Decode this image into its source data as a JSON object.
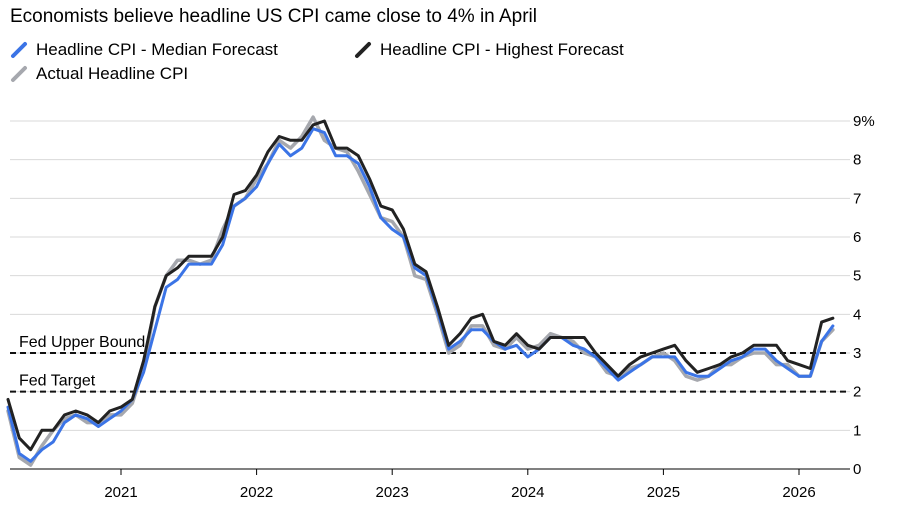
{
  "chart_data": {
    "type": "line",
    "title": "Economists believe headline US CPI came close to 4% in April",
    "y_unit": "%",
    "ylim": [
      0,
      9
    ],
    "y_ticks": [
      "0",
      "1",
      "2",
      "3",
      "4",
      "5",
      "6",
      "7",
      "8",
      "9%"
    ],
    "x_ticks": [
      "2021",
      "2022",
      "2023",
      "2024",
      "2025",
      "2026"
    ],
    "grid": "horizontal",
    "legend_position": "top-left",
    "reference_lines": [
      {
        "label": "Fed Upper Bound",
        "value": 3
      },
      {
        "label": "Fed Target",
        "value": 2
      }
    ],
    "x": [
      "2020-03",
      "2020-04",
      "2020-05",
      "2020-06",
      "2020-07",
      "2020-08",
      "2020-09",
      "2020-10",
      "2020-11",
      "2020-12",
      "2021-01",
      "2021-02",
      "2021-03",
      "2021-04",
      "2021-05",
      "2021-06",
      "2021-07",
      "2021-08",
      "2021-09",
      "2021-10",
      "2021-11",
      "2021-12",
      "2022-01",
      "2022-02",
      "2022-03",
      "2022-04",
      "2022-05",
      "2022-06",
      "2022-07",
      "2022-08",
      "2022-09",
      "2022-10",
      "2022-11",
      "2022-12",
      "2023-01",
      "2023-02",
      "2023-03",
      "2023-04",
      "2023-05",
      "2023-06",
      "2023-07",
      "2023-08",
      "2023-09",
      "2023-10",
      "2023-11",
      "2023-12",
      "2024-01",
      "2024-02",
      "2024-03",
      "2024-04",
      "2024-05",
      "2024-06",
      "2024-07",
      "2024-08",
      "2024-09",
      "2024-10",
      "2024-11",
      "2024-12",
      "2025-01",
      "2025-02",
      "2025-03",
      "2025-04",
      "2025-05",
      "2025-06",
      "2025-07",
      "2025-08",
      "2025-09",
      "2025-10",
      "2025-11",
      "2025-12",
      "2026-01",
      "2026-02",
      "2026-03",
      "2026-04"
    ],
    "series": [
      {
        "name": "Actual Headline CPI",
        "color": "#a6a8ae",
        "values": [
          1.5,
          0.3,
          0.1,
          0.6,
          1.0,
          1.3,
          1.4,
          1.2,
          1.2,
          1.4,
          1.4,
          1.7,
          2.6,
          4.2,
          5.0,
          5.4,
          5.4,
          5.3,
          5.4,
          6.2,
          6.8,
          7.0,
          7.5,
          7.9,
          8.5,
          8.3,
          8.6,
          9.1,
          8.5,
          8.3,
          8.2,
          7.7,
          7.1,
          6.5,
          6.4,
          6.0,
          5.0,
          4.9,
          4.0,
          3.0,
          3.2,
          3.7,
          3.7,
          3.2,
          3.1,
          3.4,
          3.1,
          3.2,
          3.5,
          3.4,
          3.3,
          3.0,
          2.9,
          2.5,
          2.4,
          2.6,
          2.7,
          2.9,
          3.0,
          2.8,
          2.4,
          2.3,
          2.4,
          2.7,
          2.7,
          2.9,
          3.0,
          3.0,
          2.7,
          2.7,
          2.4,
          2.4,
          3.3,
          3.6
        ]
      },
      {
        "name": "Headline CPI - Median Forecast",
        "color": "#3b74e6",
        "values": [
          1.6,
          0.4,
          0.2,
          0.5,
          0.7,
          1.2,
          1.4,
          1.3,
          1.1,
          1.3,
          1.5,
          1.8,
          2.5,
          3.6,
          4.7,
          4.9,
          5.3,
          5.3,
          5.3,
          5.8,
          6.8,
          7.0,
          7.3,
          7.9,
          8.4,
          8.1,
          8.3,
          8.8,
          8.7,
          8.1,
          8.1,
          7.9,
          7.3,
          6.5,
          6.2,
          6.0,
          5.2,
          5.0,
          4.1,
          3.1,
          3.3,
          3.6,
          3.6,
          3.3,
          3.1,
          3.2,
          2.9,
          3.1,
          3.4,
          3.4,
          3.2,
          3.1,
          2.9,
          2.6,
          2.3,
          2.5,
          2.7,
          2.9,
          2.9,
          2.9,
          2.5,
          2.4,
          2.4,
          2.6,
          2.8,
          2.9,
          3.1,
          3.1,
          2.8,
          2.6,
          2.4,
          2.4,
          3.3,
          3.7
        ]
      },
      {
        "name": "Headline CPI - Highest Forecast",
        "color": "#222222",
        "values": [
          1.8,
          0.8,
          0.5,
          1.0,
          1.0,
          1.4,
          1.5,
          1.4,
          1.2,
          1.5,
          1.6,
          1.8,
          2.8,
          4.2,
          5.0,
          5.2,
          5.5,
          5.5,
          5.5,
          6.0,
          7.1,
          7.2,
          7.6,
          8.2,
          8.6,
          8.5,
          8.5,
          8.9,
          9.0,
          8.3,
          8.3,
          8.1,
          7.5,
          6.8,
          6.7,
          6.2,
          5.3,
          5.1,
          4.2,
          3.2,
          3.5,
          3.9,
          4.0,
          3.3,
          3.2,
          3.5,
          3.2,
          3.1,
          3.4,
          3.4,
          3.4,
          3.4,
          3.0,
          2.7,
          2.4,
          2.7,
          2.9,
          3.0,
          3.1,
          3.2,
          2.8,
          2.5,
          2.6,
          2.7,
          2.9,
          3.0,
          3.2,
          3.2,
          3.2,
          2.8,
          2.7,
          2.6,
          3.8,
          3.9
        ]
      }
    ]
  },
  "legend": {
    "items": [
      {
        "label": "Headline CPI - Median Forecast",
        "color": "#3b74e6"
      },
      {
        "label": "Headline CPI - Highest Forecast",
        "color": "#222222"
      },
      {
        "label": "Actual Headline CPI",
        "color": "#a6a8ae"
      }
    ]
  }
}
